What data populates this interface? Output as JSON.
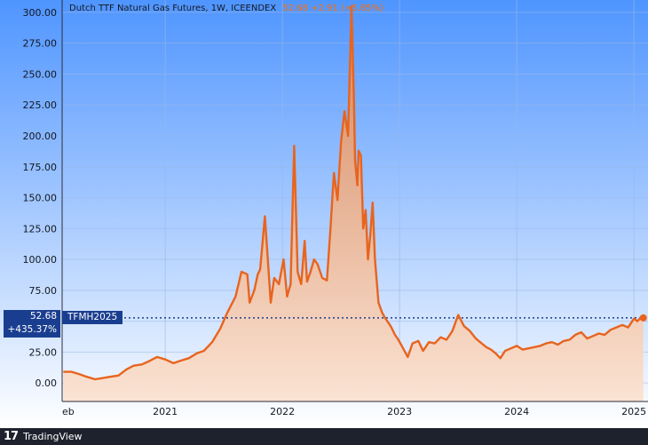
{
  "header": {
    "symbol": "Dutch TTF Natural Gas Futures, 1W, ICEENDEX",
    "value_text": "52.68  +2.91 (+5.85%)"
  },
  "badge": {
    "price": "52.68",
    "pct": "+435.37%",
    "symbol": "TFMH2025"
  },
  "footer": {
    "logo": "17",
    "brand": "TradingView"
  },
  "colors": {
    "line": "#e8641e",
    "bg_top": "#5a9bff",
    "bg_bottom": "#ffffff",
    "baseline": "#1a3e8f"
  },
  "chart_data": {
    "type": "area",
    "title": "Dutch TTF Natural Gas Futures, 1W, ICEENDEX",
    "ylim": [
      -15,
      310
    ],
    "y_ticks": [
      0,
      25,
      50,
      75,
      100,
      125,
      150,
      175,
      200,
      225,
      250,
      275,
      300
    ],
    "y_tick_labels": [
      "0.00",
      "25.00",
      "50.00",
      "75.00",
      "100.00",
      "125.00",
      "150.00",
      "175.00",
      "200.00",
      "225.00",
      "250.00",
      "275.00",
      "300.00"
    ],
    "x_ticks": [
      {
        "label": "eb",
        "x": 2020.13
      },
      {
        "label": "2021",
        "x": 2021.0
      },
      {
        "label": "2022",
        "x": 2022.0
      },
      {
        "label": "2023",
        "x": 2023.0
      },
      {
        "label": "2024",
        "x": 2024.0
      },
      {
        "label": "2025",
        "x": 2025.0
      }
    ],
    "xlim": [
      2020.12,
      2025.12
    ],
    "baseline_value": 52.68,
    "last_value": 52.68,
    "series": [
      {
        "x": [
          2020.13,
          2020.2,
          2020.27,
          2020.33,
          2020.4,
          2020.47,
          2020.53,
          2020.6,
          2020.67,
          2020.73,
          2020.8,
          2020.87,
          2020.93,
          2021.0,
          2021.07,
          2021.13,
          2021.2,
          2021.27,
          2021.33,
          2021.4,
          2021.47,
          2021.53,
          2021.6,
          2021.65,
          2021.7,
          2021.72,
          2021.76,
          2021.79,
          2021.81,
          2021.85,
          2021.9,
          2021.93,
          2021.97,
          2021.99,
          2022.01,
          2022.04,
          2022.07,
          2022.1,
          2022.13,
          2022.16,
          2022.19,
          2022.21,
          2022.24,
          2022.27,
          2022.3,
          2022.34,
          2022.38,
          2022.41,
          2022.44,
          2022.47,
          2022.5,
          2022.53,
          2022.56,
          2022.59,
          2022.61,
          2022.62,
          2022.64,
          2022.65,
          2022.67,
          2022.69,
          2022.71,
          2022.73,
          2022.75,
          2022.77,
          2022.79,
          2022.82,
          2022.85,
          2022.88,
          2022.91,
          2022.93,
          2022.96,
          2022.99,
          2023.03,
          2023.07,
          2023.11,
          2023.16,
          2023.2,
          2023.25,
          2023.3,
          2023.35,
          2023.4,
          2023.45,
          2023.5,
          2023.55,
          2023.6,
          2023.65,
          2023.7,
          2023.74,
          2023.78,
          2023.82,
          2023.86,
          2023.9,
          2023.95,
          2024.0,
          2024.05,
          2024.1,
          2024.15,
          2024.2,
          2024.25,
          2024.3,
          2024.35,
          2024.4,
          2024.45,
          2024.5,
          2024.55,
          2024.6,
          2024.65,
          2024.7,
          2024.75,
          2024.8,
          2024.85,
          2024.9,
          2024.95,
          2025.0,
          2025.03,
          2025.06,
          2025.08
        ],
        "y": [
          9,
          9,
          7,
          5,
          3,
          4,
          5,
          6,
          11,
          14,
          15,
          18,
          21,
          19,
          16,
          18,
          20,
          24,
          26,
          33,
          44,
          57,
          70,
          90,
          88,
          65,
          75,
          88,
          92,
          135,
          65,
          85,
          80,
          90,
          100,
          70,
          80,
          192,
          90,
          80,
          115,
          82,
          90,
          100,
          96,
          85,
          83,
          125,
          170,
          148,
          195,
          220,
          200,
          305,
          230,
          180,
          160,
          188,
          184,
          125,
          140,
          100,
          120,
          146,
          100,
          65,
          57,
          52,
          48,
          45,
          39,
          35,
          28,
          21,
          32,
          34,
          26,
          33,
          32,
          37,
          35,
          42,
          55,
          46,
          42,
          36,
          32,
          29,
          27,
          24,
          20,
          26,
          28,
          30,
          27,
          28,
          29,
          30,
          32,
          33,
          31,
          34,
          35,
          39,
          41,
          36,
          38,
          40,
          39,
          43,
          45,
          47,
          45,
          52,
          50,
          53,
          52.68
        ]
      }
    ]
  }
}
